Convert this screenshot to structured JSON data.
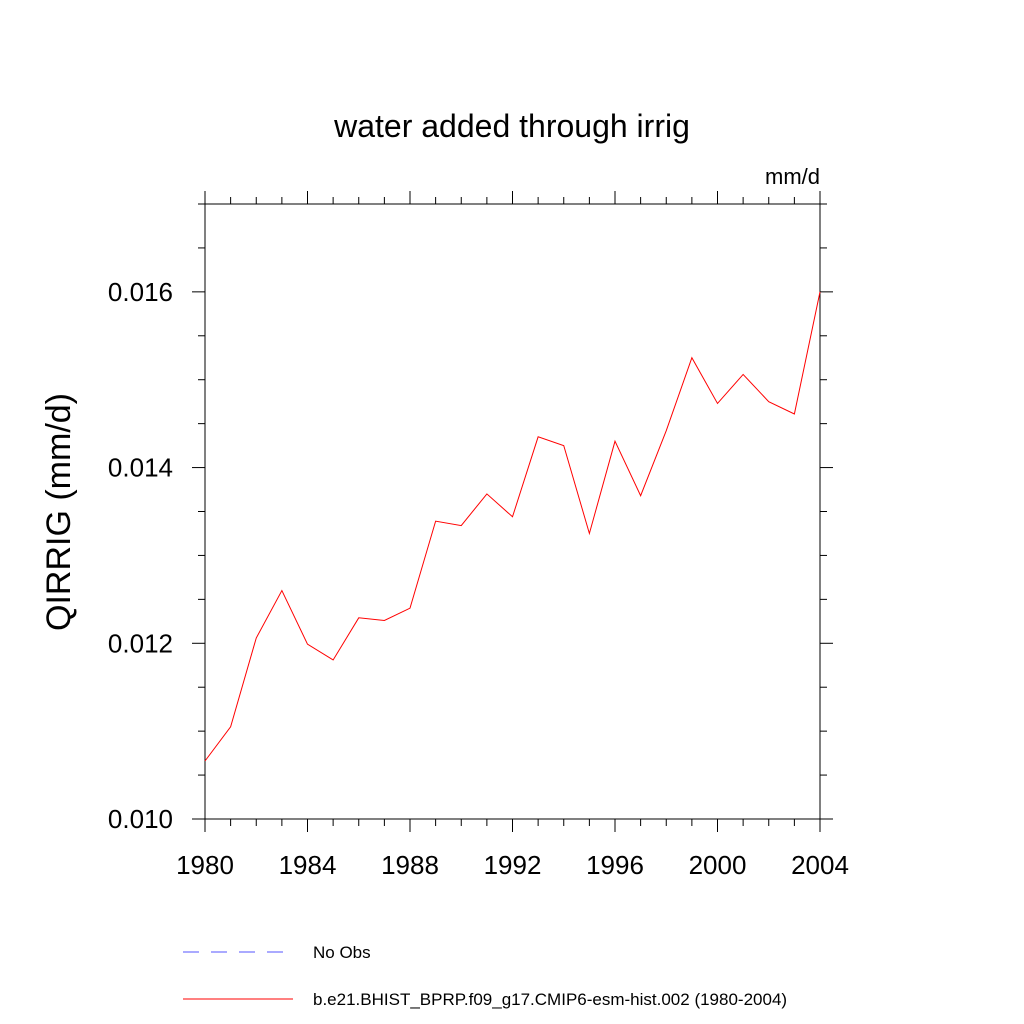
{
  "chart_data": {
    "type": "line",
    "title": "water added through irrig",
    "units_label": "mm/d",
    "ylabel": "QIRRIG  (mm/d)",
    "xlabel": "",
    "xlim": [
      1980,
      2004
    ],
    "ylim": [
      0.01,
      0.017
    ],
    "x_major_ticks": [
      1980,
      1984,
      1988,
      1992,
      1996,
      2000,
      2004
    ],
    "x_tick_labels": [
      "1980",
      "1984",
      "1988",
      "1992",
      "1996",
      "2000",
      "2004"
    ],
    "y_major_ticks": [
      0.01,
      0.012,
      0.014,
      0.016
    ],
    "y_tick_labels": [
      "0.010",
      "0.012",
      "0.014",
      "0.016"
    ],
    "x_minor_step": 1,
    "y_minor_step": 0.0005,
    "grid": false,
    "legend_position": "bottom-left",
    "series": [
      {
        "name": "No Obs",
        "color": "#5555ff",
        "style": "dashed",
        "x": [],
        "values": []
      },
      {
        "name": "b.e21.BHIST_BPRP.f09_g17.CMIP6-esm-hist.002 (1980-2004)",
        "color": "#ff0000",
        "style": "solid",
        "x": [
          1980,
          1981,
          1982,
          1983,
          1984,
          1985,
          1986,
          1987,
          1988,
          1989,
          1990,
          1991,
          1992,
          1993,
          1994,
          1995,
          1996,
          1997,
          1998,
          1999,
          2000,
          2001,
          2002,
          2003,
          2004
        ],
        "values": [
          0.01066,
          0.01105,
          0.01206,
          0.0126,
          0.01199,
          0.01181,
          0.01229,
          0.01226,
          0.0124,
          0.01339,
          0.01334,
          0.0137,
          0.01344,
          0.01435,
          0.01425,
          0.01325,
          0.0143,
          0.01368,
          0.01442,
          0.01525,
          0.01473,
          0.01506,
          0.01475,
          0.01461,
          0.016
        ]
      }
    ]
  }
}
